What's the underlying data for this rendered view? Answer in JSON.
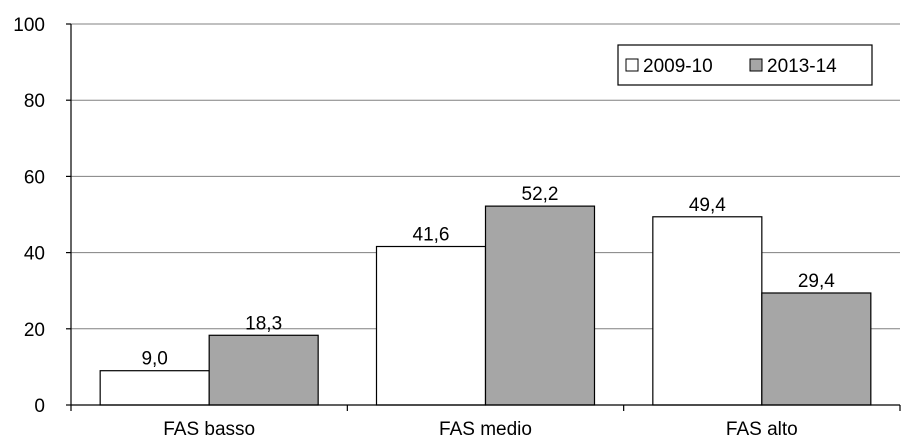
{
  "chart_data": {
    "type": "bar",
    "categories": [
      "FAS basso",
      "FAS medio",
      "FAS alto"
    ],
    "series": [
      {
        "name": "2009-10",
        "values": [
          9.0,
          41.6,
          49.4
        ],
        "labels": [
          "9,0",
          "41,6",
          "49,4"
        ],
        "color": "#ffffff"
      },
      {
        "name": "2013-14",
        "values": [
          18.3,
          52.2,
          29.4
        ],
        "labels": [
          "18,3",
          "52,2",
          "29,4"
        ],
        "color": "#a6a6a6"
      }
    ],
    "yticks": [
      "0",
      "20",
      "40",
      "60",
      "80",
      "100"
    ],
    "ylim": [
      0,
      100
    ],
    "grid": true,
    "legend_position": "top-right",
    "title": "",
    "xlabel": "",
    "ylabel": ""
  }
}
